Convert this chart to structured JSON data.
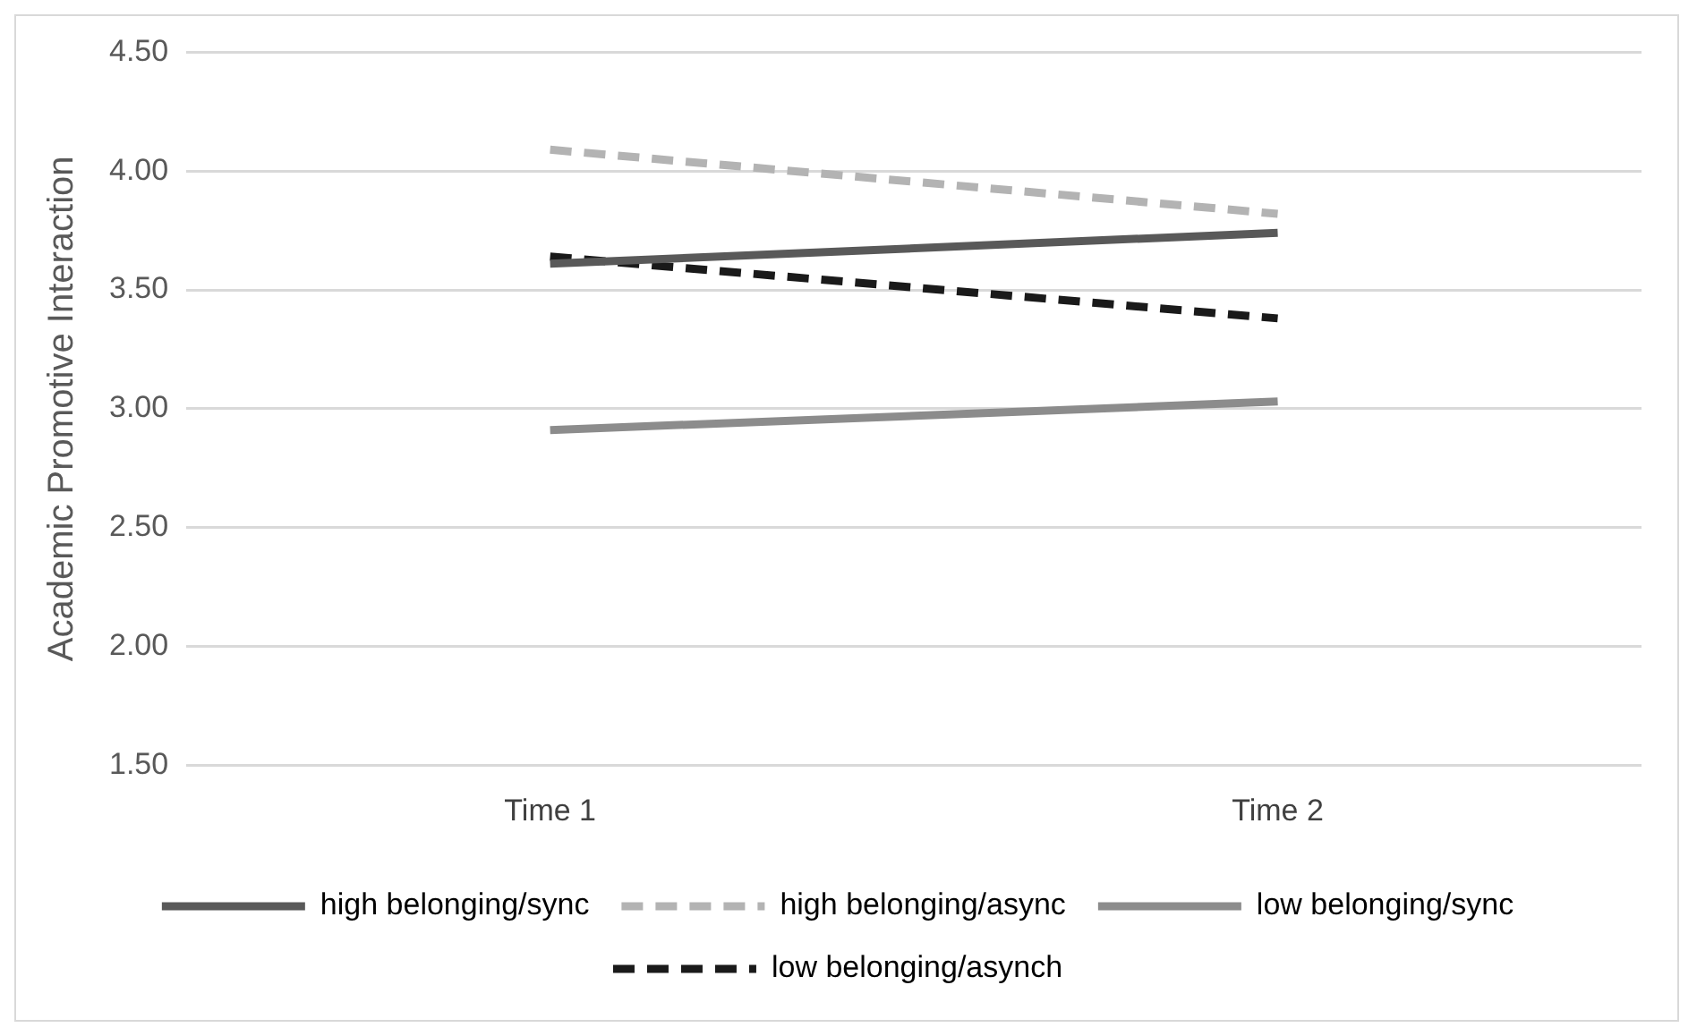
{
  "chart_data": {
    "type": "line",
    "ylabel": "Academic Promotive Interaction",
    "categories": [
      "Time 1",
      "Time 2"
    ],
    "series": [
      {
        "name": "high belonging/sync",
        "color": "#595959",
        "values": [
          3.61,
          3.74
        ],
        "line_style": "solid"
      },
      {
        "name": "high belonging/async",
        "color": "#b3b3b3",
        "values": [
          4.09,
          3.82
        ],
        "line_style": "dashed"
      },
      {
        "name": "low belonging/sync",
        "color": "#8c8c8c",
        "values": [
          2.91,
          3.03
        ],
        "line_style": "solid"
      },
      {
        "name": "low belonging/asynch",
        "color": "#1a1a1a",
        "values": [
          3.64,
          3.38
        ],
        "line_style": "dashed"
      }
    ],
    "ylim": [
      1.5,
      4.5
    ],
    "yticks": [
      {
        "value": 1.5,
        "label": "1.50"
      },
      {
        "value": 2,
        "label": "2.00"
      },
      {
        "value": 2.5,
        "label": "2.50"
      },
      {
        "value": 3,
        "label": "3.00"
      },
      {
        "value": 3.5,
        "label": "3.50"
      },
      {
        "value": 4,
        "label": "4.00"
      },
      {
        "value": 4.5,
        "label": "4.50"
      }
    ],
    "grid": "y",
    "legend": "bottom",
    "marker": "none"
  }
}
